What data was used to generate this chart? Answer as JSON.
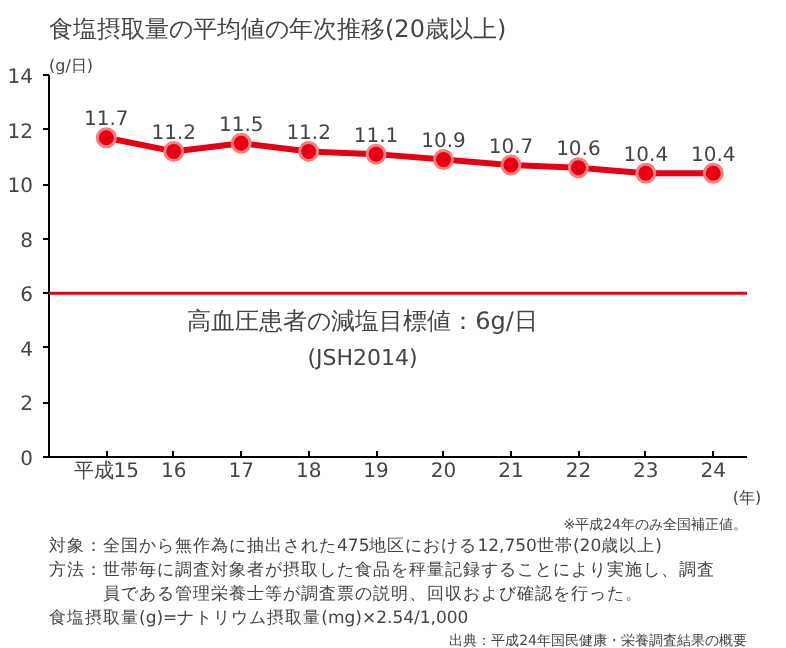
{
  "chart_data": {
    "type": "line",
    "title": "食塩摂取量の平均値の年次推移(20歳以上)",
    "ylabel": "(g/日)",
    "xlabel": "(年)",
    "categories": [
      "平成15",
      "16",
      "17",
      "18",
      "19",
      "20",
      "21",
      "22",
      "23",
      "24"
    ],
    "series": [
      {
        "color": "#e60012",
        "values": [
          11.7,
          11.2,
          11.5,
          11.2,
          11.1,
          10.9,
          10.7,
          10.6,
          10.4,
          10.4
        ]
      }
    ],
    "ylim": [
      0,
      14
    ],
    "yticks": [
      0,
      2,
      4,
      6,
      8,
      10,
      12,
      14
    ],
    "marker": "circle",
    "data_labels": true,
    "grid": false,
    "ref_lines": [
      {
        "axis": "y",
        "value": 6,
        "label": "高血圧患者の減塩目標値：6g/日",
        "color": "#e60012"
      }
    ],
    "annotations": [
      "(JSH2014)",
      "※平成24年のみ全国補正値。",
      "対象：全国から無作為に抽出された475地区における12,750世帯(20歳以上)",
      "方法：世帯毎に調査対象者が摂取した食品を秤量記録することにより実施し、調査員である管理栄養士等が調査票の説明、回収および確認を行った。",
      "食塩摂取量(g)=ナトリウム摂取量(mg)×2.54/1,000",
      "出典：平成24年国民健康・栄養調査結果の概要"
    ]
  }
}
